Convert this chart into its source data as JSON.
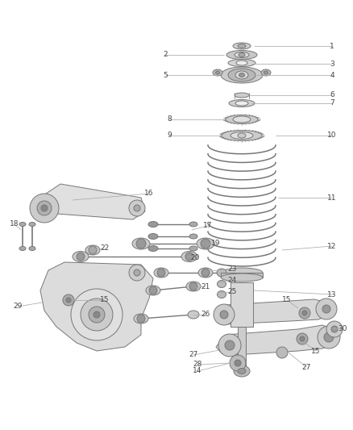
{
  "background_color": "#ffffff",
  "fig_width": 4.38,
  "fig_height": 5.33,
  "dpi": 100,
  "line_color": "#888888",
  "text_color": "#444444",
  "part_fill": "#e8e8e8",
  "part_stroke": "#777777",
  "font_size": 6.5
}
